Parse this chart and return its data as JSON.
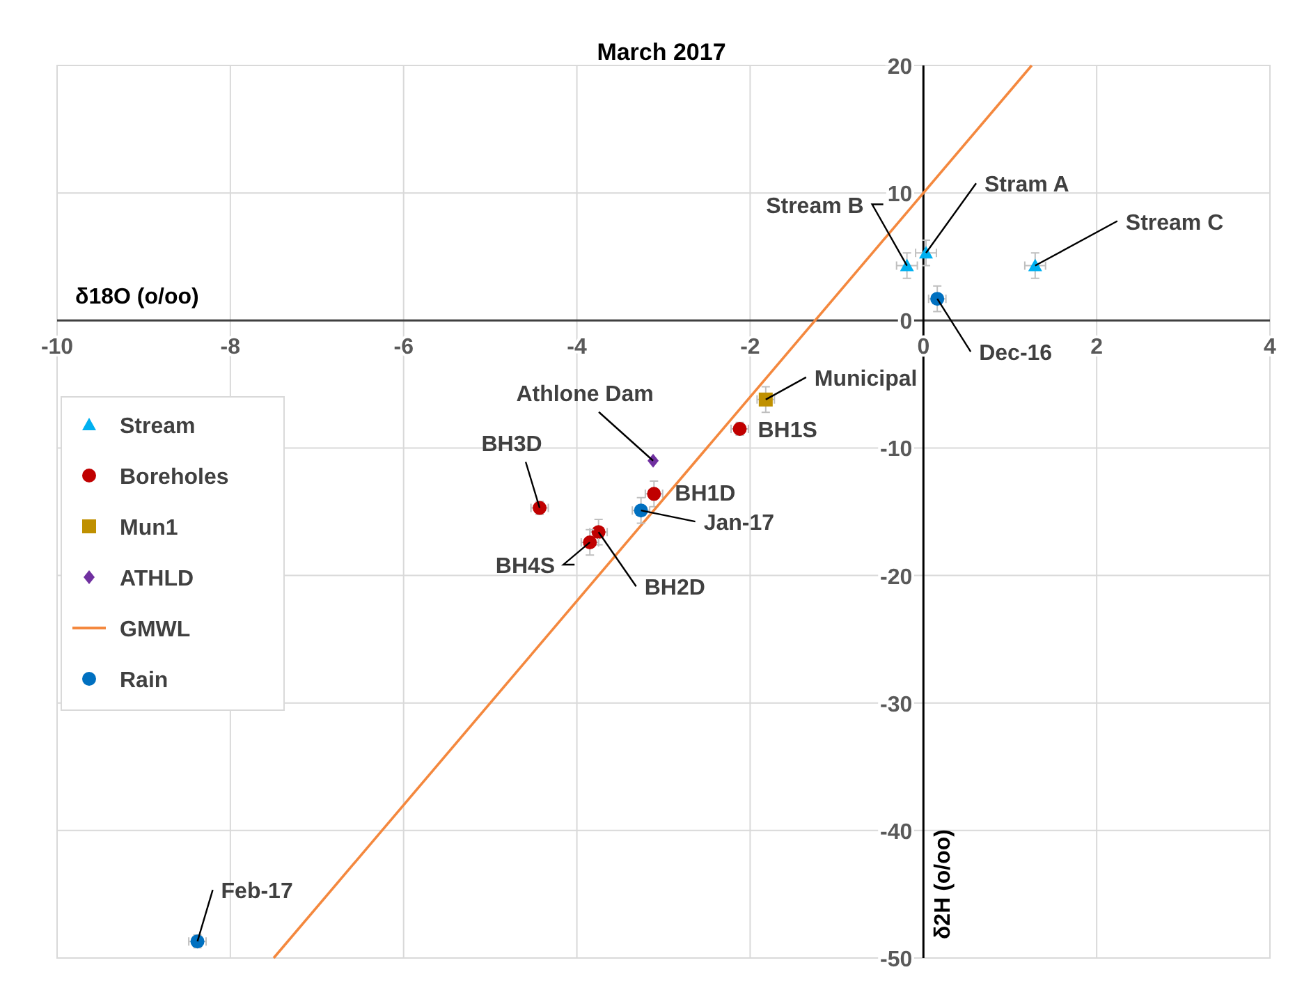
{
  "chart_data": {
    "type": "scatter",
    "title": "March 2017",
    "xlabel": "δ18O (o/oo)",
    "ylabel": "δ2H (o/oo)",
    "xlim": [
      -10,
      4
    ],
    "xticks": [
      -10,
      -8,
      -6,
      -4,
      -2,
      0,
      2,
      4
    ],
    "ylim": [
      -50,
      20
    ],
    "yticks": [
      -50,
      -40,
      -30,
      -20,
      -10,
      0,
      10,
      20
    ],
    "grid": true,
    "legend": "left",
    "series": [
      {
        "name": "Stream",
        "color": "#00b0f0",
        "marker": "triangle",
        "x": [
          -0.19,
          0.03,
          1.29
        ],
        "values": [
          4.3,
          5.3,
          4.3
        ],
        "errors": [
          1,
          1,
          1
        ],
        "xerrors": [
          0.12,
          0.12,
          0.12
        ]
      },
      {
        "name": "Boreholes",
        "color": "#c00000",
        "marker": "circle",
        "x": [
          -2.12,
          -3.11,
          -4.43,
          -3.75,
          -3.85
        ],
        "values": [
          -8.5,
          -13.6,
          -14.7,
          -16.6,
          -17.4
        ],
        "errors": [
          0.5,
          1,
          0.5,
          1,
          1
        ],
        "xerrors": [
          0.1,
          0.1,
          0.1,
          0.1,
          0.1
        ]
      },
      {
        "name": "Mun1",
        "color": "#bf9000",
        "marker": "square",
        "x": [
          -1.82
        ],
        "values": [
          -6.2
        ],
        "errors": [
          1
        ],
        "xerrors": [
          0.1
        ]
      },
      {
        "name": "ATHLD",
        "color": "#7030a0",
        "marker": "diamond",
        "x": [
          -3.12
        ],
        "values": [
          -11.0
        ]
      },
      {
        "name": "GMWL",
        "type": "line",
        "color": "#f4883e",
        "marker": "none",
        "x": [
          -7.5,
          1.25
        ],
        "values": [
          -50,
          20
        ]
      },
      {
        "name": "Rain",
        "color": "#0070c0",
        "marker": "circle",
        "x": [
          0.16,
          -3.26,
          -8.38
        ],
        "values": [
          1.7,
          -14.9,
          -48.7
        ],
        "errors": [
          1,
          1,
          0.5
        ],
        "xerrors": [
          0.1,
          0.1,
          0.1
        ]
      }
    ],
    "annotations": [
      {
        "text": "Stream B",
        "x": -0.19,
        "y": 4.3
      },
      {
        "text": "Stram A",
        "x": 0.03,
        "y": 5.3
      },
      {
        "text": "Stream C",
        "x": 1.29,
        "y": 4.3
      },
      {
        "text": "Dec-16",
        "x": 0.16,
        "y": 1.7
      },
      {
        "text": "Municipal",
        "x": -1.82,
        "y": -6.2
      },
      {
        "text": "BH1S",
        "x": -2.12,
        "y": -8.5
      },
      {
        "text": "Athlone Dam",
        "x": -3.12,
        "y": -11.0
      },
      {
        "text": "BH3D",
        "x": -4.43,
        "y": -14.7
      },
      {
        "text": "BH1D",
        "x": -3.11,
        "y": -13.6
      },
      {
        "text": "Jan-17",
        "x": -3.26,
        "y": -14.9
      },
      {
        "text": "BH4S",
        "x": -3.85,
        "y": -17.4
      },
      {
        "text": "BH2D",
        "x": -3.75,
        "y": -16.6
      },
      {
        "text": "Feb-17",
        "x": -8.38,
        "y": -48.7
      }
    ]
  }
}
